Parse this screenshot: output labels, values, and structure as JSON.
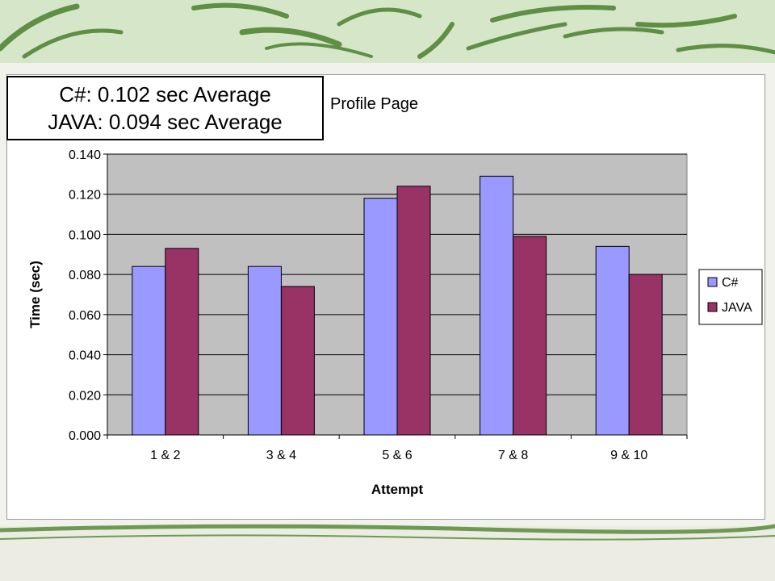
{
  "callout": {
    "line1": "C#: 0.102 sec Average",
    "line2": "JAVA: 0.094 sec Average"
  },
  "chart_data": {
    "type": "bar",
    "title": "Profile Page",
    "xlabel": "Attempt",
    "ylabel": "Time (sec)",
    "categories": [
      "1 & 2",
      "3 & 4",
      "5 & 6",
      "7 & 8",
      "9 & 10"
    ],
    "series": [
      {
        "name": "C#",
        "color": "#9999ff",
        "values": [
          0.084,
          0.084,
          0.118,
          0.129,
          0.094
        ]
      },
      {
        "name": "JAVA",
        "color": "#993366",
        "values": [
          0.093,
          0.074,
          0.124,
          0.099,
          0.08
        ]
      }
    ],
    "ylim": [
      0,
      0.14
    ],
    "yticks": [
      "0.000",
      "0.020",
      "0.040",
      "0.060",
      "0.080",
      "0.100",
      "0.120",
      "0.140"
    ],
    "ytick_values": [
      0,
      0.02,
      0.04,
      0.06,
      0.08,
      0.1,
      0.12,
      0.14
    ],
    "grid": true,
    "plot_background": "#c0c0c0",
    "legend_position": "right"
  }
}
